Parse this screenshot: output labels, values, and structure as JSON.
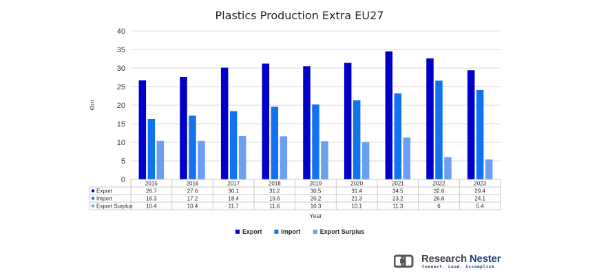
{
  "chart_data": {
    "type": "bar",
    "title": "Plastics Production Extra EU27",
    "xlabel": "Year",
    "ylabel": "€bn",
    "ylim": [
      0,
      40
    ],
    "yticks": [
      0,
      5,
      10,
      15,
      20,
      25,
      30,
      35,
      40
    ],
    "grid": true,
    "legend_position": "bottom",
    "categories": [
      "2015",
      "2016",
      "2017",
      "2018",
      "2019",
      "2020",
      "2021",
      "2022",
      "2023"
    ],
    "series": [
      {
        "name": "Export",
        "color": "#0000c8",
        "values": [
          26.7,
          27.6,
          30.1,
          31.2,
          30.5,
          31.4,
          34.5,
          32.6,
          29.4
        ]
      },
      {
        "name": "Import",
        "color": "#1273f0",
        "values": [
          16.3,
          17.2,
          18.4,
          19.6,
          20.2,
          21.3,
          23.2,
          26.6,
          24.1
        ]
      },
      {
        "name": "Export Surplus",
        "color": "#6a9ff2",
        "values": [
          10.4,
          10.4,
          11.7,
          11.6,
          10.3,
          10.1,
          11.3,
          6,
          5.4
        ]
      }
    ],
    "data_table": true
  },
  "brand": {
    "name_part1": "Research",
    "name_part2": " Nester",
    "tagline": "Connect. Lead. Accomplish",
    "logo": "research-nester-logo"
  }
}
